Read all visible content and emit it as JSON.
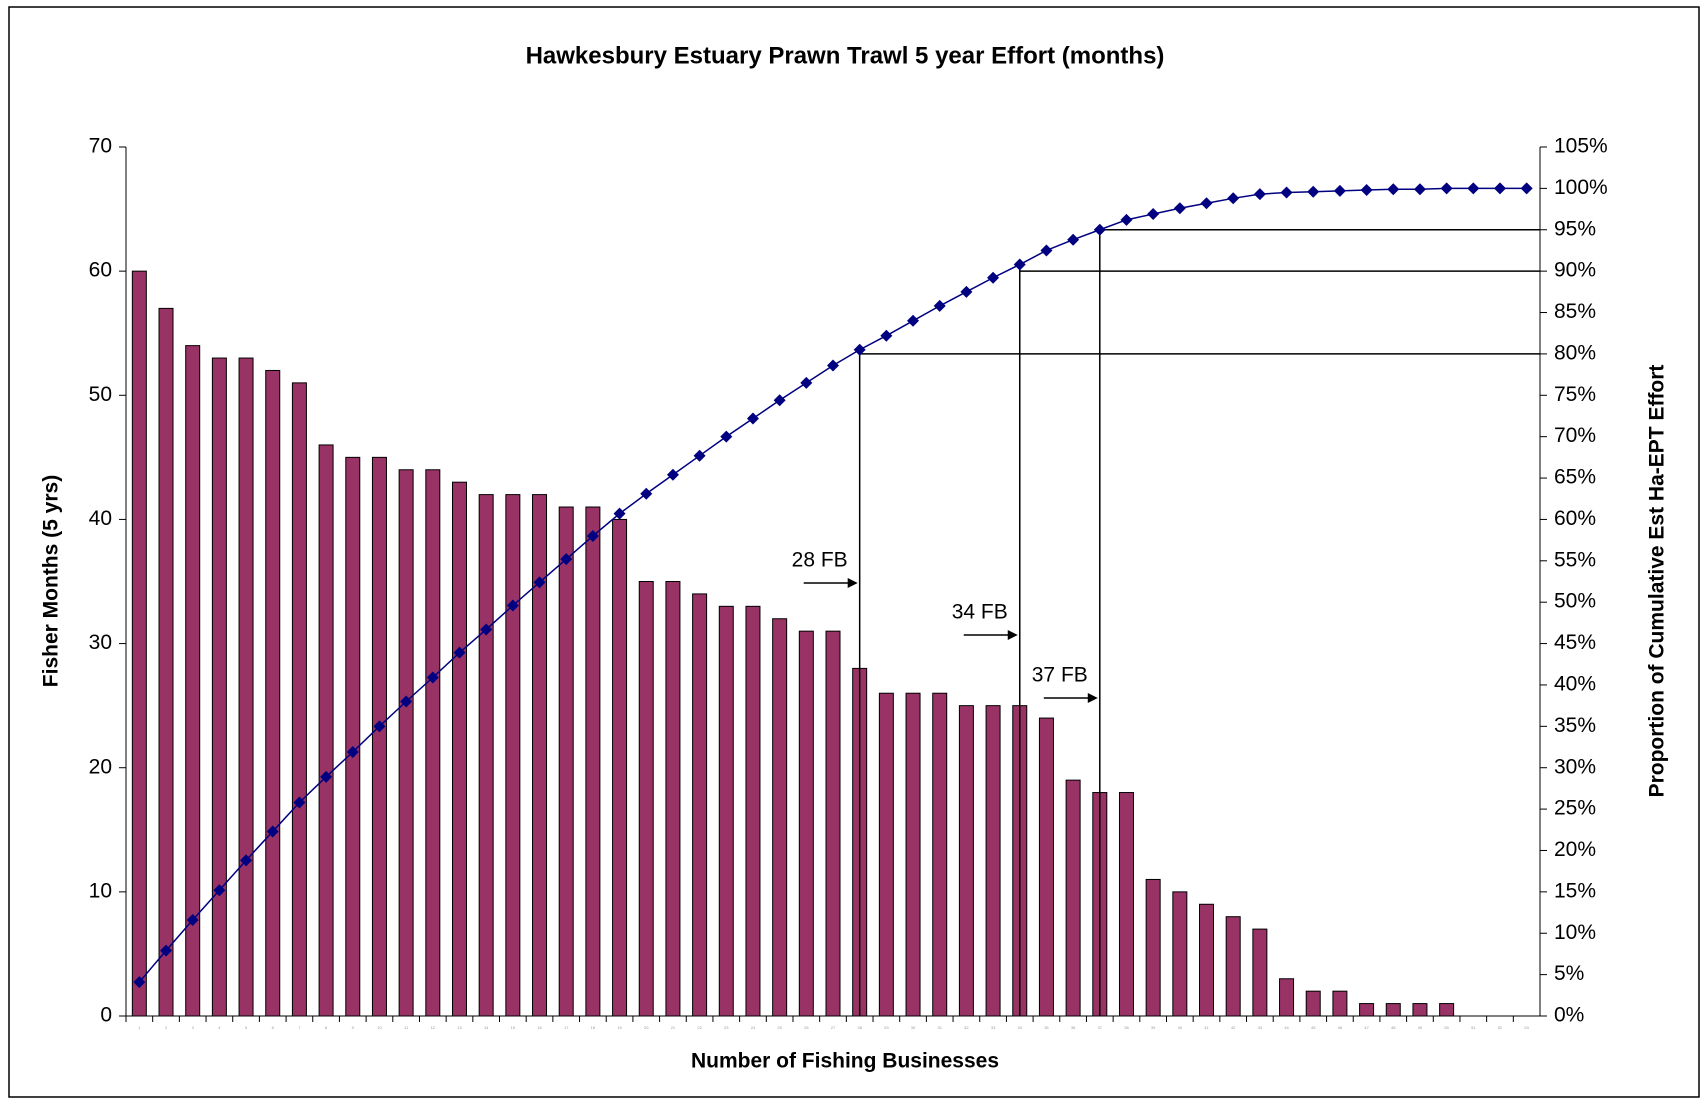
{
  "chart_data": {
    "type": "bar_line",
    "title": "Hawkesbury Estuary Prawn Trawl 5 year Effort (months)",
    "x_label": "Number of Fishing Businesses",
    "y_label": "Fisher Months (5 yrs)",
    "y2_label": "Proportion of Cumulative Est Ha-EPT Effort",
    "categories": [
      1,
      2,
      3,
      4,
      5,
      6,
      7,
      8,
      9,
      10,
      11,
      12,
      13,
      14,
      15,
      16,
      17,
      18,
      19,
      20,
      21,
      22,
      23,
      24,
      25,
      26,
      27,
      28,
      29,
      30,
      31,
      32,
      33,
      34,
      35,
      36,
      37,
      38,
      39,
      40,
      41,
      42,
      43,
      44,
      45,
      46,
      47,
      48,
      49,
      50,
      51,
      52,
      53
    ],
    "series": [
      {
        "type": "bar",
        "color": "#993366",
        "values": [
          60,
          57,
          54,
          53,
          53,
          52,
          51,
          46,
          45,
          45,
          44,
          44,
          43,
          42,
          42,
          42,
          41,
          41,
          40,
          35,
          35,
          34,
          33,
          33,
          32,
          31,
          31,
          28,
          26,
          26,
          26,
          25,
          25,
          25,
          24,
          19,
          18,
          18,
          11,
          10,
          9,
          8,
          7,
          3,
          2,
          2,
          1,
          1,
          1,
          1,
          0,
          0,
          0
        ]
      },
      {
        "type": "line",
        "axis": "y2",
        "color": "#000080",
        "values": [
          4.1,
          7.9,
          11.6,
          15.2,
          18.8,
          22.3,
          25.8,
          28.9,
          31.9,
          35.0,
          38.0,
          40.9,
          43.9,
          46.7,
          49.6,
          52.4,
          55.2,
          58.0,
          60.7,
          63.1,
          65.4,
          67.7,
          70.0,
          72.2,
          74.4,
          76.5,
          78.6,
          80.5,
          82.2,
          84.0,
          85.8,
          87.5,
          89.2,
          90.8,
          92.5,
          93.8,
          95.0,
          96.2,
          96.9,
          97.6,
          98.2,
          98.8,
          99.3,
          99.5,
          99.6,
          99.7,
          99.8,
          99.9,
          99.9,
          100,
          100,
          100,
          100
        ]
      }
    ],
    "ylim": [
      0,
      70
    ],
    "yticks": [
      0,
      10,
      20,
      30,
      40,
      50,
      60,
      70
    ],
    "y2lim": [
      0,
      105
    ],
    "y2ticks": [
      {
        "value": 0,
        "label": "0%"
      },
      {
        "value": 5,
        "label": "5%"
      },
      {
        "value": 10,
        "label": "10%"
      },
      {
        "value": 15,
        "label": "15%"
      },
      {
        "value": 20,
        "label": "20%"
      },
      {
        "value": 25,
        "label": "25%"
      },
      {
        "value": 30,
        "label": "30%"
      },
      {
        "value": 35,
        "label": "35%"
      },
      {
        "value": 40,
        "label": "40%"
      },
      {
        "value": 45,
        "label": "45%"
      },
      {
        "value": 50,
        "label": "50%"
      },
      {
        "value": 55,
        "label": "55%"
      },
      {
        "value": 60,
        "label": "60%"
      },
      {
        "value": 65,
        "label": "65%"
      },
      {
        "value": 70,
        "label": "70%"
      },
      {
        "value": 75,
        "label": "75%"
      },
      {
        "value": 80,
        "label": "80%"
      },
      {
        "value": 85,
        "label": "85%"
      },
      {
        "value": 90,
        "label": "90%"
      },
      {
        "value": 95,
        "label": "95%"
      },
      {
        "value": 100,
        "label": "100%"
      },
      {
        "value": 105,
        "label": "105%"
      }
    ],
    "annotations": [
      {
        "text": "28 FB",
        "category": 28,
        "level": 80
      },
      {
        "text": "34 FB",
        "category": 34,
        "level": 90
      },
      {
        "text": "37 FB",
        "category": 37,
        "level": 95
      }
    ]
  }
}
